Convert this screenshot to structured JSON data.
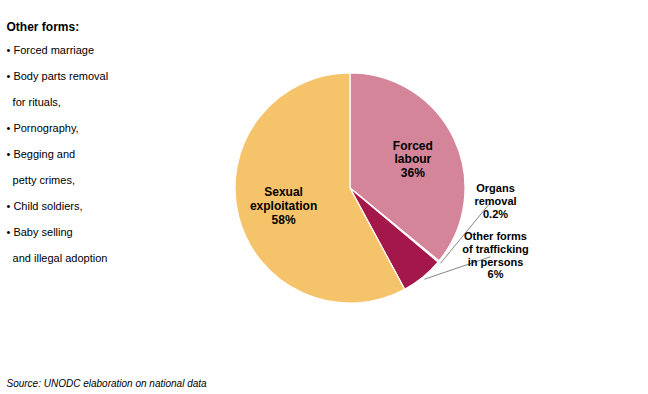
{
  "chart_data": {
    "type": "pie",
    "categories": [
      "Forced\nlabour",
      "Organs\nremoval",
      "Other forms\nof trafficking\nin persons",
      "Sexual\nexploitation"
    ],
    "values": [
      36,
      0.2,
      6,
      58
    ],
    "value_labels": [
      "36%",
      "0.2%",
      "6%",
      "58%"
    ],
    "data_labels": true,
    "colors": [
      "#d4859a",
      "#e8c8cc",
      "#a3174a",
      "#f5c46a"
    ],
    "annotations": [
      "Other forms:",
      "• Forced marriage",
      "• Body parts removal",
      "  for rituals,",
      "• Pornography,",
      "• Begging and",
      "  petty crimes,",
      "• Child soldiers,",
      "• Baby selling",
      "  and illegal adoption",
      "Source: UNODC elaboration on national data"
    ]
  }
}
